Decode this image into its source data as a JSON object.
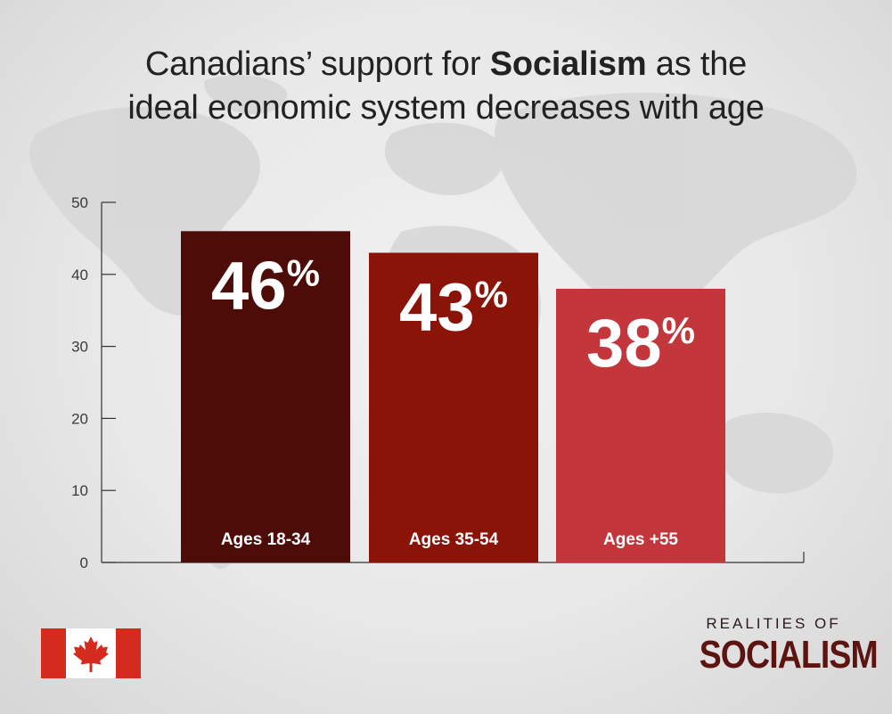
{
  "title": {
    "part1": "Canadians’ support for ",
    "bold": "Socialism",
    "part2": " as the",
    "line2": "ideal economic system decreases with age"
  },
  "chart_data": {
    "type": "bar",
    "categories": [
      "Ages 18-34",
      "Ages 35-54",
      "Ages +55"
    ],
    "values": [
      46,
      43,
      38
    ],
    "value_labels": [
      "46",
      "43",
      "38"
    ],
    "value_suffix": "%",
    "bar_colors": [
      "#4e0c08",
      "#8a1408",
      "#c3373c"
    ],
    "ylim": [
      0,
      50
    ],
    "yticks": [
      "0",
      "10",
      "20",
      "30",
      "40",
      "50"
    ],
    "xlabel": "",
    "ylabel": "",
    "grid": false,
    "legend": "none"
  },
  "flag": {
    "icon": "maple-leaf-icon",
    "red": "#d52b1e",
    "white": "#ffffff"
  },
  "brand": {
    "line1": "REALITIES OF",
    "line2": "SOCIALISM"
  }
}
